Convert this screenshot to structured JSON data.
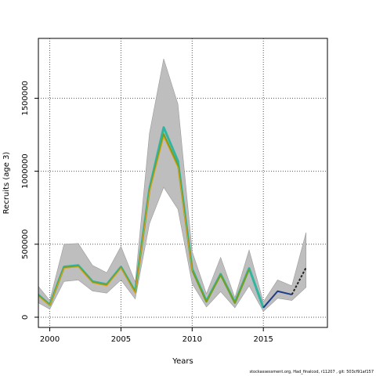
{
  "chart_data": {
    "type": "line",
    "xlabel": "Years",
    "ylabel": "Recruits (age 3)",
    "xlim": [
      1999.2,
      2019.5
    ],
    "ylim": [
      -70000,
      1910000
    ],
    "xticks": [
      2000,
      2005,
      2010,
      2015
    ],
    "yticks": [
      0,
      500000,
      1000000,
      1500000
    ],
    "grid": true,
    "band": {
      "color": "#bebebe",
      "x": [
        1999,
        2000,
        2001,
        2002,
        2003,
        2004,
        2005,
        2006,
        2007,
        2008,
        2009,
        2010,
        2011,
        2012,
        2013,
        2014,
        2015,
        2016,
        2017,
        2018
      ],
      "upper": [
        235000,
        115000,
        500000,
        505000,
        355000,
        305000,
        485000,
        240000,
        1260000,
        1770000,
        1460000,
        450000,
        160000,
        410000,
        135000,
        460000,
        105000,
        255000,
        215000,
        580000
      ],
      "lower": [
        110000,
        55000,
        245000,
        255000,
        180000,
        165000,
        255000,
        125000,
        640000,
        890000,
        740000,
        230000,
        70000,
        175000,
        65000,
        215000,
        40000,
        130000,
        115000,
        205000
      ]
    },
    "series": [
      {
        "color": "#2fb6a0",
        "width": 3,
        "x": [
          1999,
          2000,
          2001,
          2002,
          2003,
          2004,
          2005,
          2006,
          2007,
          2008,
          2009,
          2010,
          2011,
          2012,
          2013,
          2014,
          2015
        ],
        "values": [
          170000,
          85000,
          345000,
          355000,
          245000,
          225000,
          345000,
          175000,
          880000,
          1300000,
          1070000,
          330000,
          110000,
          295000,
          100000,
          335000,
          65000
        ]
      },
      {
        "color": "#7a9d1c",
        "width": 2,
        "x": [
          1999,
          2000,
          2001,
          2002,
          2003,
          2004,
          2005,
          2006,
          2007,
          2008,
          2009,
          2010,
          2011,
          2012,
          2013,
          2014
        ],
        "values": [
          165000,
          82000,
          340000,
          350000,
          240000,
          220000,
          340000,
          170000,
          865000,
          1255000,
          1040000,
          320000,
          105000,
          290000,
          97000,
          330000
        ]
      },
      {
        "color": "#e0a020",
        "width": 1,
        "x": [
          1999,
          2000,
          2001,
          2002,
          2003,
          2004,
          2005,
          2006,
          2007,
          2008,
          2009,
          2010
        ],
        "values": [
          160000,
          80000,
          335000,
          345000,
          235000,
          215000,
          335000,
          165000,
          855000,
          1235000,
          1025000,
          315000
        ]
      },
      {
        "color": "#1f3c8a",
        "width": 2,
        "x": [
          2015,
          2016,
          2017
        ],
        "values": [
          65000,
          178000,
          155000
        ]
      },
      {
        "color": "#222222",
        "width": 2,
        "dash": "3,2",
        "x": [
          2017,
          2018
        ],
        "values": [
          155000,
          340000
        ]
      }
    ]
  },
  "footer_text": "stockassessment.org, Had_finalcod, r11207 , git: 503cf91af157"
}
